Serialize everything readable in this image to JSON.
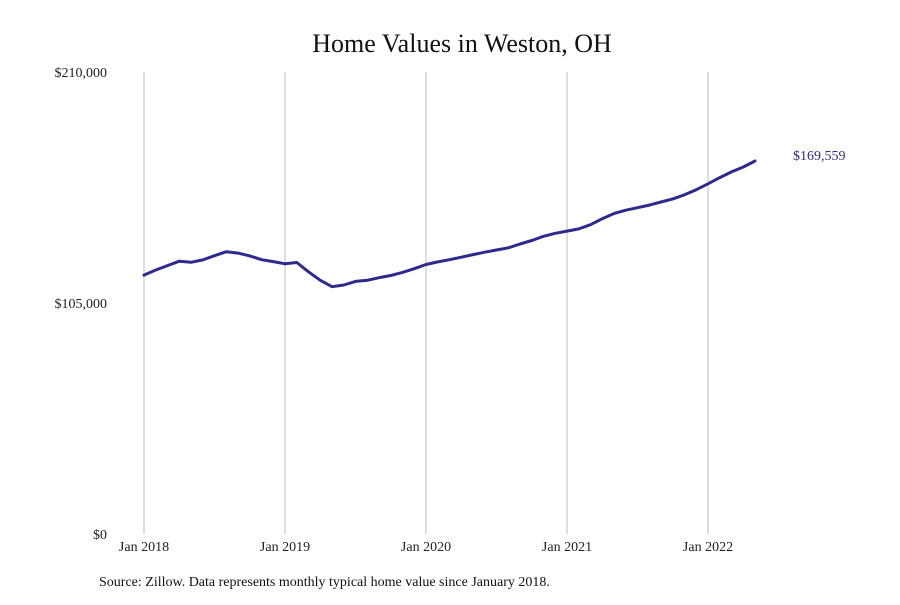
{
  "chart_data": {
    "type": "line",
    "title": "Home Values in Weston, OH",
    "source_note": "Source: Zillow. Data represents monthly typical home value since January 2018.",
    "x_ticks": [
      "Jan 2018",
      "Jan 2019",
      "Jan 2020",
      "Jan 2021",
      "Jan 2022"
    ],
    "y_ticks": [
      "$0",
      "$105,000",
      "$210,000"
    ],
    "ylim": [
      0,
      210000
    ],
    "grid": "vertical",
    "end_label": "$169,559",
    "line_color": "#2e2a8c",
    "series": [
      {
        "x": [
          "2018-01",
          "2018-02",
          "2018-03",
          "2018-04",
          "2018-05",
          "2018-06",
          "2018-07",
          "2018-08",
          "2018-09",
          "2018-10",
          "2018-11",
          "2018-12",
          "2019-01",
          "2019-02",
          "2019-03",
          "2019-04",
          "2019-05",
          "2019-06",
          "2019-07",
          "2019-08",
          "2019-09",
          "2019-10",
          "2019-11",
          "2019-12",
          "2020-01",
          "2020-02",
          "2020-03",
          "2020-04",
          "2020-05",
          "2020-06",
          "2020-07",
          "2020-08",
          "2020-09",
          "2020-10",
          "2020-11",
          "2020-12",
          "2021-01",
          "2021-02",
          "2021-03",
          "2021-04",
          "2021-05",
          "2021-06",
          "2021-07",
          "2021-08",
          "2021-09",
          "2021-10",
          "2021-11",
          "2021-12",
          "2022-01",
          "2022-02",
          "2022-03",
          "2022-04",
          "2022-05"
        ],
        "values": [
          117700,
          120000,
          122000,
          124000,
          123500,
          124600,
          126500,
          128300,
          127700,
          126400,
          124700,
          123800,
          122800,
          123400,
          119200,
          115300,
          112400,
          113200,
          114800,
          115300,
          116500,
          117500,
          118900,
          120600,
          122500,
          123700,
          124700,
          125800,
          127000,
          128100,
          129100,
          130100,
          131800,
          133400,
          135300,
          136700,
          137700,
          138700,
          140600,
          143300,
          145700,
          147200,
          148300,
          149500,
          150900,
          152300,
          154200,
          156500,
          159200,
          162000,
          164600,
          166800,
          169559
        ]
      }
    ]
  }
}
